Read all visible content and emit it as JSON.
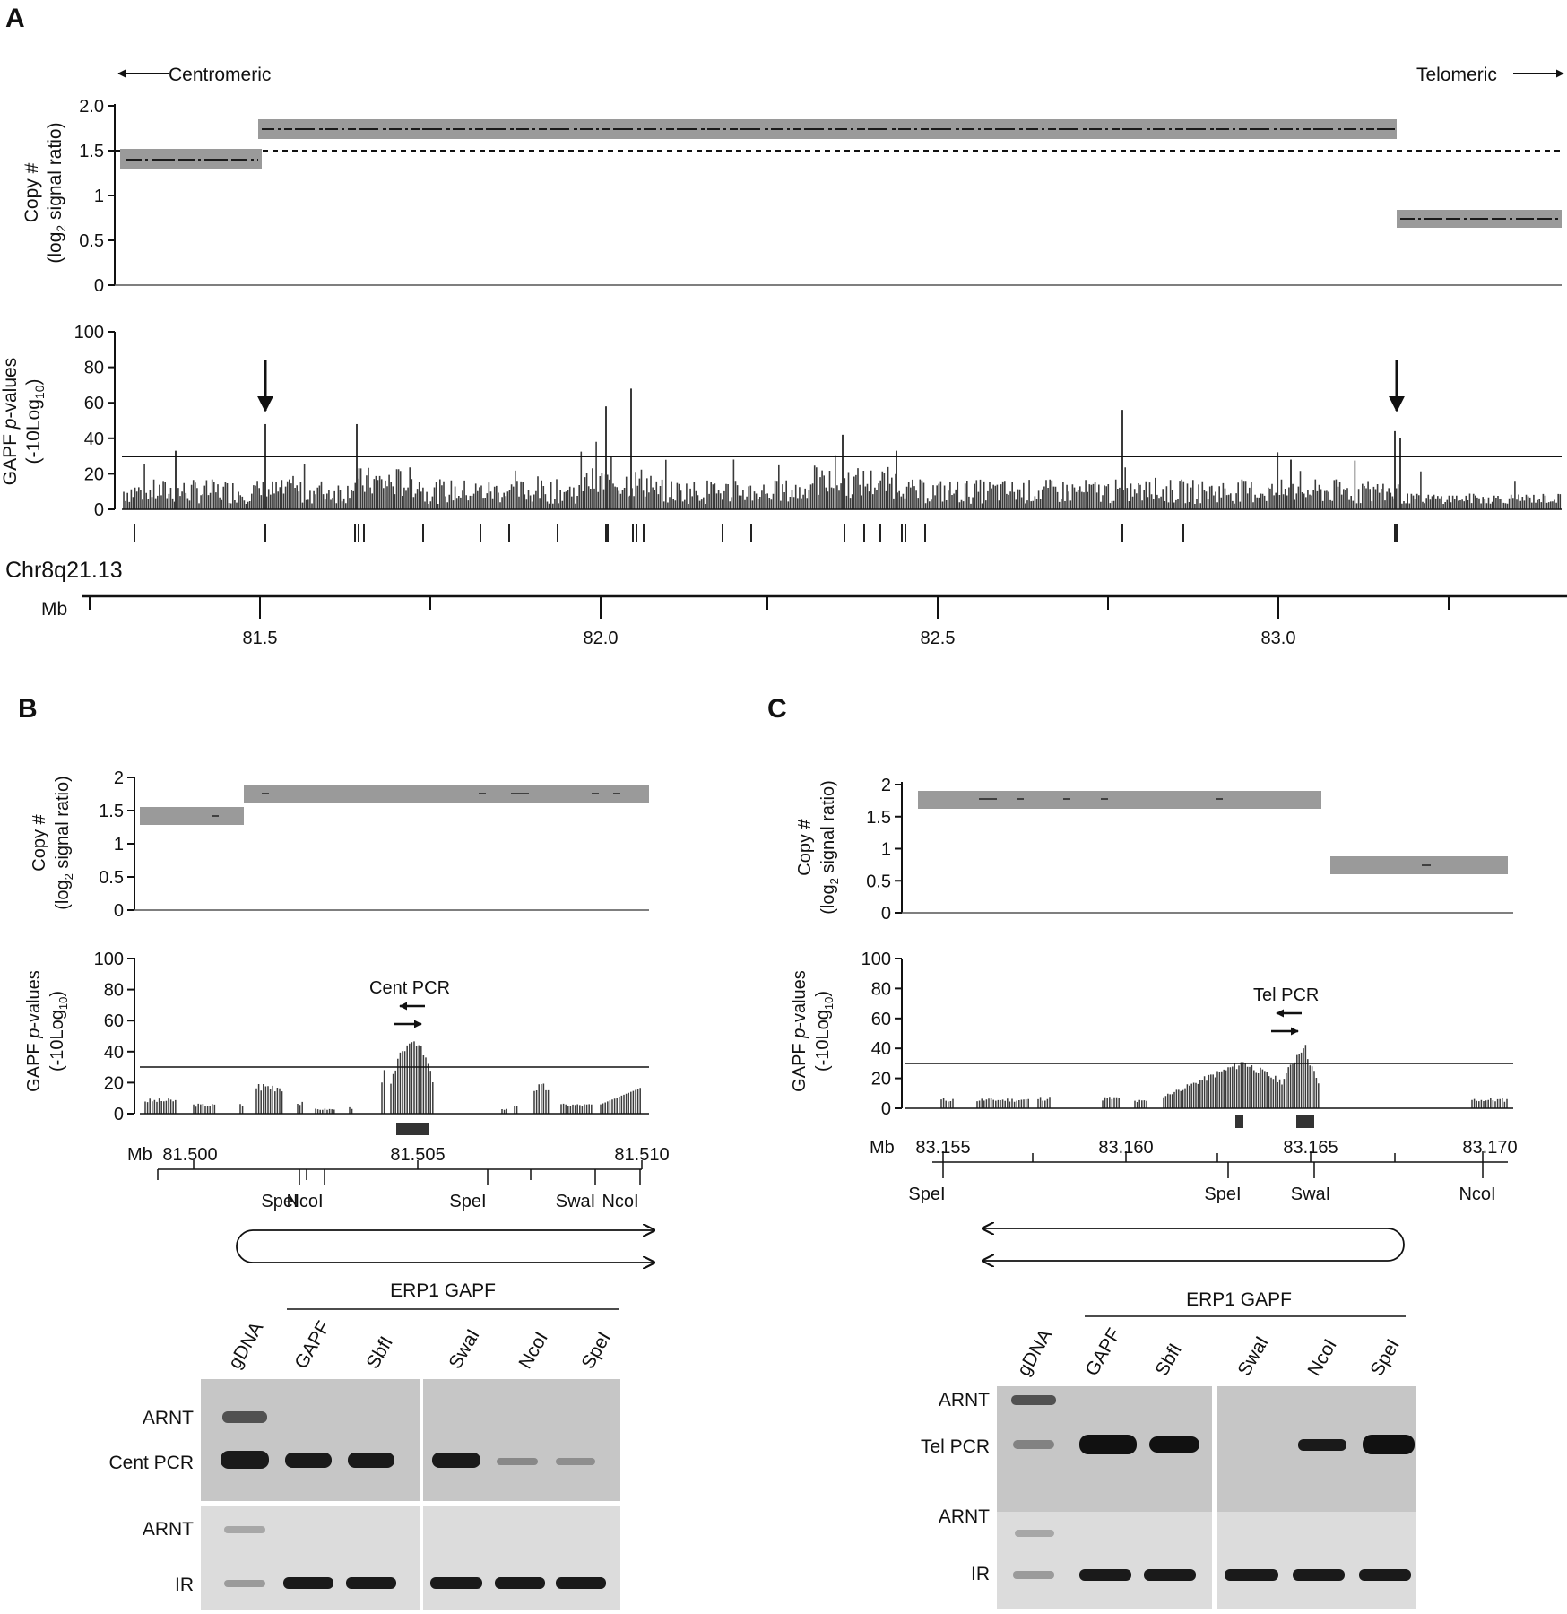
{
  "figure": {
    "colors": {
      "segment": "#9a9a9a",
      "bar": "#3a3a3a",
      "gel_dark": "#1a1a1a",
      "gel_bg_top": "#c6c6c6",
      "gel_bg_bottom": "#dcdcdc"
    },
    "panelA": {
      "letter": "A",
      "centromeric": "Centromeric",
      "telomeric": "Telomeric",
      "copy_ylabel1": "Copy #",
      "copy_ylabel2a": "(log",
      "copy_ylabel2b": "2",
      "copy_ylabel2c": " signal ratio)",
      "copy_ticks": [
        "2.0",
        "1.5",
        "1",
        "0.5",
        "0"
      ],
      "gapf_ylabel1a": "GAPF ",
      "gapf_ylabel1b": "p",
      "gapf_ylabel1c": "-values",
      "gapf_ylabel2a": "(-10Log",
      "gapf_ylabel2b": "10",
      "gapf_ylabel2c": ")",
      "gapf_ticks": [
        "100",
        "80",
        "60",
        "40",
        "20",
        "0"
      ],
      "chrom": "Chr8q21.13",
      "mb": "Mb",
      "mb_ticks": [
        "81.5",
        "82.0",
        "82.5",
        "83.0"
      ]
    },
    "panelB": {
      "letter": "B",
      "copy_ylabel1": "Copy #",
      "copy_ylabel2a": "(log",
      "copy_ylabel2b": "2",
      "copy_ylabel2c": " signal ratio)",
      "copy_ticks": [
        "2",
        "1.5",
        "1",
        "0.5",
        "0"
      ],
      "gapf_ylabel1a": "GAPF ",
      "gapf_ylabel1b": "p",
      "gapf_ylabel1c": "-values",
      "gapf_ylabel2a": "(-10Log",
      "gapf_ylabel2b": "10",
      "gapf_ylabel2c": ")",
      "gapf_ticks": [
        "100",
        "80",
        "60",
        "40",
        "20",
        "0"
      ],
      "pcr_label": "Cent PCR",
      "mb": "Mb",
      "mb_ticks": [
        "81.500",
        "81.505",
        "81.510"
      ],
      "sites": [
        "SpeI",
        "NcoI",
        "SpeI",
        "SwaI",
        "NcoI"
      ],
      "erp_label": "ERP1 GAPF",
      "lanes": [
        "gDNA",
        "GAPF",
        "SbfI",
        "SwaI",
        "NcoI",
        "SpeI"
      ],
      "row_labels": [
        "ARNT",
        "Cent PCR",
        "ARNT",
        "IR"
      ]
    },
    "panelC": {
      "letter": "C",
      "copy_ylabel1": "Copy #",
      "copy_ylabel2a": "(log",
      "copy_ylabel2b": "2",
      "copy_ylabel2c": " signal ratio)",
      "copy_ticks": [
        "2",
        "1.5",
        "1",
        "0.5",
        "0"
      ],
      "gapf_ylabel1a": "GAPF ",
      "gapf_ylabel1b": "p",
      "gapf_ylabel1c": "-values",
      "gapf_ylabel2a": "(-10Log",
      "gapf_ylabel2b": "10",
      "gapf_ylabel2c": ")",
      "gapf_ticks": [
        "100",
        "80",
        "60",
        "40",
        "20",
        "0"
      ],
      "pcr_label": "Tel PCR",
      "mb": "Mb",
      "mb_ticks": [
        "83.155",
        "83.160",
        "83.165",
        "83.170"
      ],
      "sites": [
        "SpeI",
        "SpeI",
        "SwaI",
        "NcoI"
      ],
      "erp_label": "ERP1 GAPF",
      "lanes": [
        "gDNA",
        "GAPF",
        "SbfI",
        "SwaI",
        "NcoI",
        "SpeI"
      ],
      "row_labels": [
        "ARNT",
        "Tel PCR",
        "ARNT",
        "IR"
      ]
    }
  }
}
